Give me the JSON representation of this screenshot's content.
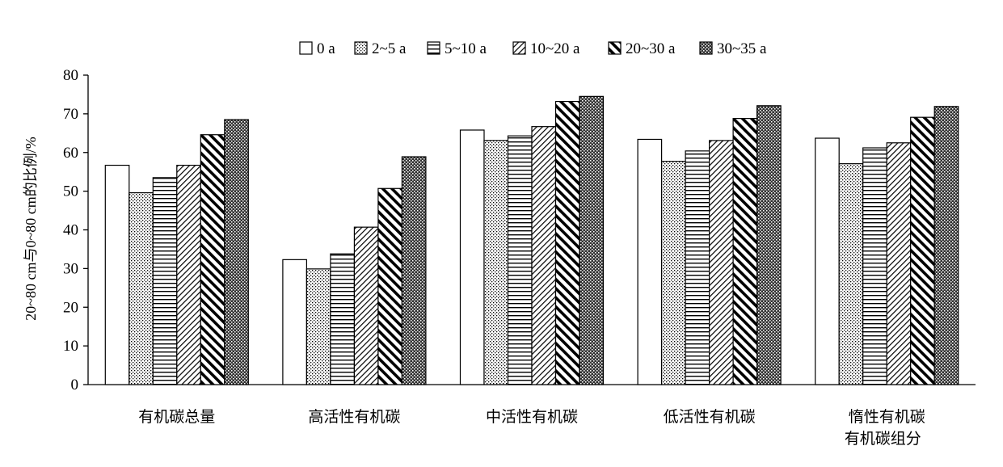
{
  "chart_data": {
    "type": "bar",
    "title": "",
    "xlabel": "",
    "ylabel": "20~80 cm与0~80 cm的比例/%",
    "ylim": [
      0,
      80
    ],
    "yticks": [
      0,
      10,
      20,
      30,
      40,
      50,
      60,
      70,
      80
    ],
    "grid": false,
    "legend_position": "top",
    "categories": [
      "有机碳总量",
      "高活性有机碳",
      "中活性有机碳",
      "低活性有机碳",
      "惰性有机碳"
    ],
    "category_note": "有机碳组分",
    "series": [
      {
        "name": "0 a",
        "values": [
          56.7,
          32.3,
          65.8,
          63.4,
          63.7
        ],
        "pattern": "blank"
      },
      {
        "name": "2~5 a",
        "values": [
          49.6,
          29.9,
          63.1,
          57.7,
          57.1
        ],
        "pattern": "dots"
      },
      {
        "name": "5~10 a",
        "values": [
          53.5,
          33.8,
          64.3,
          60.4,
          61.2
        ],
        "pattern": "hlines"
      },
      {
        "name": "10~20 a",
        "values": [
          56.7,
          40.7,
          66.7,
          63.1,
          62.5
        ],
        "pattern": "backdiag"
      },
      {
        "name": "20~30 a",
        "values": [
          64.6,
          50.7,
          73.2,
          68.8,
          69.1
        ],
        "pattern": "fwdiag"
      },
      {
        "name": "30~35 a",
        "values": [
          68.5,
          58.9,
          74.5,
          72.1,
          71.9
        ],
        "pattern": "dense"
      }
    ]
  }
}
